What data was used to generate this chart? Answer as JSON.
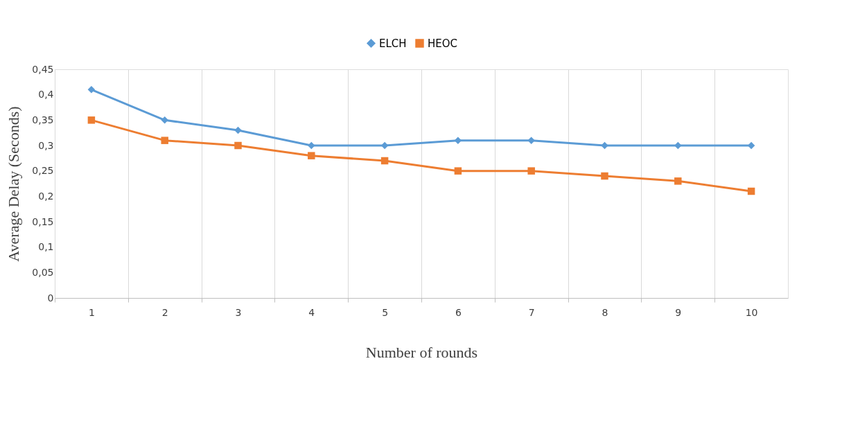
{
  "chart_data": {
    "type": "line",
    "categories": [
      "1",
      "2",
      "3",
      "4",
      "5",
      "6",
      "7",
      "8",
      "9",
      "10"
    ],
    "series": [
      {
        "name": "ELCH",
        "color": "#5b9bd5",
        "marker": "diamond",
        "values": [
          0.41,
          0.35,
          0.33,
          0.3,
          0.3,
          0.31,
          0.31,
          0.3,
          0.3,
          0.3
        ]
      },
      {
        "name": "HEOC",
        "color": "#ed7d31",
        "marker": "square",
        "values": [
          0.35,
          0.31,
          0.3,
          0.28,
          0.27,
          0.25,
          0.25,
          0.24,
          0.23,
          0.21
        ]
      }
    ],
    "xlabel": "Number of rounds",
    "ylabel": "Average Delay  (Seconds)",
    "ylim": [
      0,
      0.45
    ],
    "yticks": [
      {
        "value": 0,
        "label": "0"
      },
      {
        "value": 0.05,
        "label": "0,05"
      },
      {
        "value": 0.1,
        "label": "0,1"
      },
      {
        "value": 0.15,
        "label": "0,15"
      },
      {
        "value": 0.2,
        "label": "0,2"
      },
      {
        "value": 0.25,
        "label": "0,25"
      },
      {
        "value": 0.3,
        "label": "0,3"
      },
      {
        "value": 0.35,
        "label": "0,35"
      },
      {
        "value": 0.4,
        "label": "0,4"
      },
      {
        "value": 0.45,
        "label": "0,45"
      }
    ],
    "grid": "x",
    "legend": "top"
  }
}
